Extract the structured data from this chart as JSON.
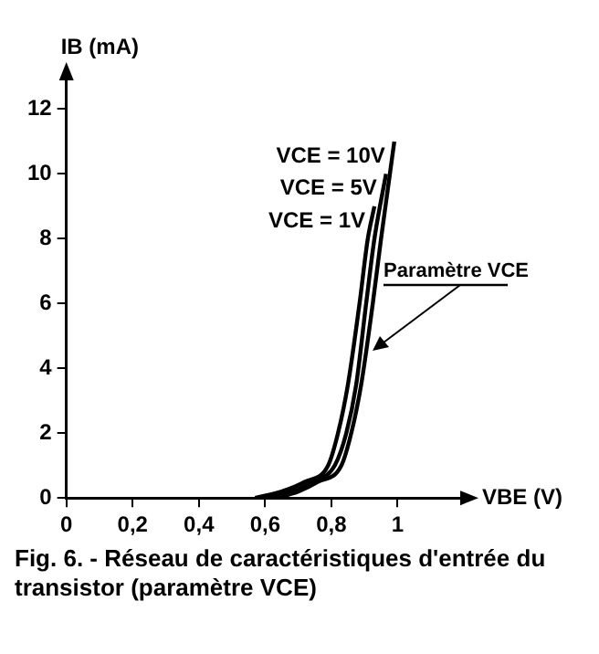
{
  "chart_data": {
    "type": "line",
    "xlabel": "VBE (V)",
    "ylabel": "IB (mA)",
    "xlim": [
      0,
      1.2
    ],
    "ylim": [
      0,
      13
    ],
    "xticks": [
      0,
      {
        "value": 0.2,
        "label": "0,2"
      },
      {
        "value": 0.4,
        "label": "0,4"
      },
      {
        "value": 0.6,
        "label": "0,6"
      },
      {
        "value": 0.8,
        "label": "0,8"
      },
      1
    ],
    "yticks": [
      0,
      2,
      4,
      6,
      8,
      10,
      12
    ],
    "grid": false,
    "legend": false,
    "marker": "none",
    "line_style": "solid",
    "series": [
      {
        "name": "VCE = 10V",
        "color": "#000000",
        "x": [
          0.63,
          0.7,
          0.76,
          0.83,
          0.86,
          0.89,
          0.925,
          0.95,
          0.97,
          0.99
        ],
        "values": [
          0,
          0.2,
          0.5,
          1,
          2,
          3.5,
          6,
          8,
          9.5,
          11
        ]
      },
      {
        "name": "VCE = 5V",
        "color": "#000000",
        "x": [
          0.6,
          0.68,
          0.745,
          0.81,
          0.845,
          0.875,
          0.905,
          0.93,
          0.965
        ],
        "values": [
          0,
          0.2,
          0.5,
          1,
          2,
          3.5,
          6,
          8,
          10
        ]
      },
      {
        "name": "VCE = 1V",
        "color": "#000000",
        "x": [
          0.57,
          0.65,
          0.72,
          0.79,
          0.82,
          0.85,
          0.885,
          0.91,
          0.93
        ],
        "values": [
          0,
          0.2,
          0.5,
          1,
          2,
          3.5,
          6,
          8,
          9
        ]
      }
    ],
    "annotations": [
      "Paramètre VCE",
      "Fig. 6. - Réseau de caractéristiques d'entrée du transistor (paramètre VCE)"
    ]
  }
}
